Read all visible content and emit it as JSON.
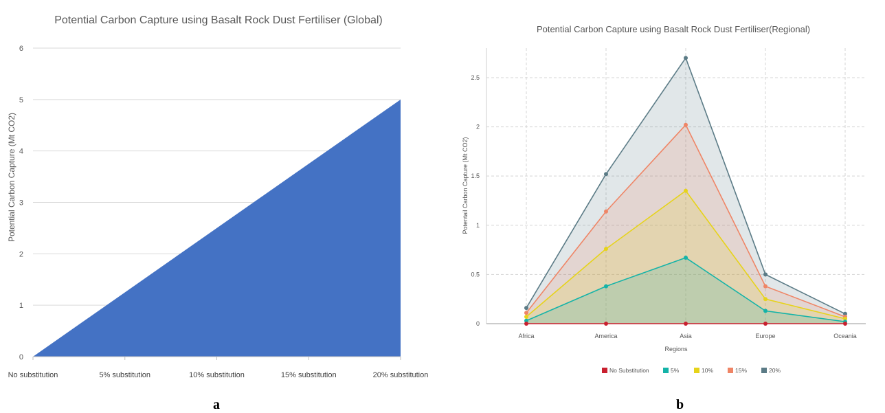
{
  "panel_labels": {
    "a": "a",
    "b": "b"
  },
  "chart_data": [
    {
      "type": "area",
      "title": "Potential Carbon Capture using Basalt Rock Dust Fertiliser (Global)",
      "ylabel": "Potential Carbon Capture (Mt CO2)",
      "xlabel": "",
      "categories": [
        "No substitution",
        "5% substitution",
        "10% substitution",
        "15% substitution",
        "20%  substitution"
      ],
      "values": [
        0,
        1.25,
        2.5,
        3.75,
        5
      ],
      "ylim": [
        0,
        6
      ],
      "yticks": [
        "0",
        "1",
        "2",
        "3",
        "4",
        "5",
        "6"
      ],
      "grid": "horizontal",
      "colors": {
        "fill": "#4472c4",
        "grid": "#d9d9d9"
      }
    },
    {
      "type": "area",
      "title": "Potential Carbon Capture using Basalt Rock Dust Fertiliser(Regional)",
      "xlabel": "Regions",
      "ylabel": "Potentail Carbon Capture (Mt CO2)",
      "categories": [
        "Africa",
        "America",
        "Asia",
        "Europe",
        "Oceania"
      ],
      "ylim": [
        0,
        2.8
      ],
      "yticks": [
        "0",
        "0.5",
        "1",
        "1.5",
        "2",
        "2.5"
      ],
      "grid": "both dashed",
      "legend_position": "bottom",
      "series": [
        {
          "name": "No Substitution",
          "color": "#c9202f",
          "values": [
            0,
            0,
            0,
            0,
            0
          ]
        },
        {
          "name": "5%",
          "color": "#14b3a8",
          "values": [
            0.03,
            0.38,
            0.67,
            0.13,
            0.02
          ]
        },
        {
          "name": "10%",
          "color": "#e6d31a",
          "values": [
            0.07,
            0.76,
            1.35,
            0.25,
            0.05
          ]
        },
        {
          "name": "15%",
          "color": "#ef8566",
          "values": [
            0.11,
            1.14,
            2.02,
            0.38,
            0.07
          ]
        },
        {
          "name": "20%",
          "color": "#5b7b86",
          "values": [
            0.16,
            1.52,
            2.7,
            0.5,
            0.1
          ]
        }
      ]
    }
  ]
}
